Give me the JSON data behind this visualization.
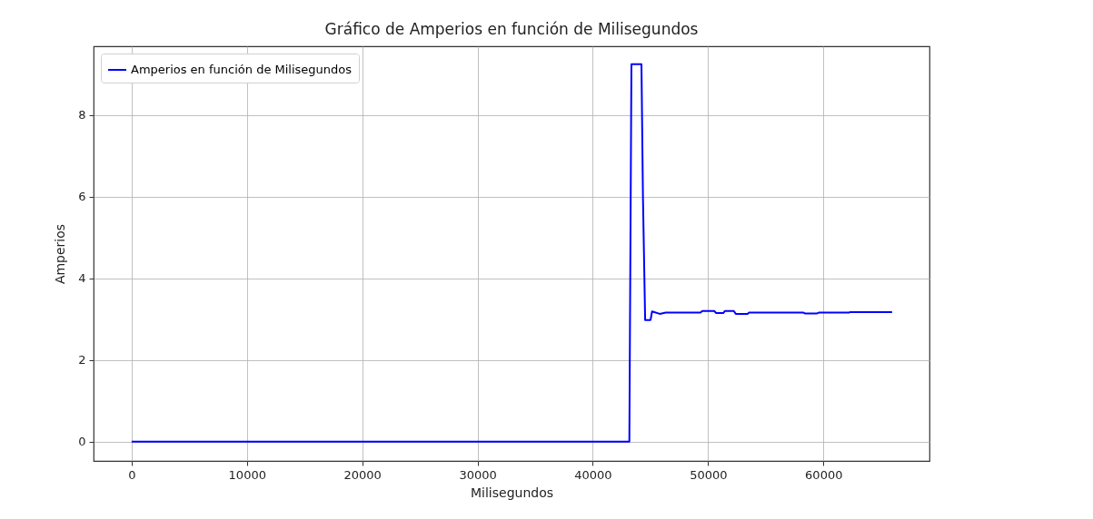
{
  "chart_data": {
    "type": "line",
    "title": "Gráfico de Amperios en función de Milisegundos",
    "xlabel": "Milisegundos",
    "ylabel": "Amperios",
    "x": [
      0,
      43170,
      43350,
      44220,
      44350,
      44540,
      45010,
      45140,
      45800,
      46330,
      49340,
      49500,
      50530,
      50700,
      51310,
      51450,
      52230,
      52400,
      53420,
      53550,
      58270,
      58400,
      59450,
      59600,
      62200,
      62300,
      65960
    ],
    "series": [
      {
        "name": "Amperios en función de Milisegundos",
        "color": "#0000ff",
        "values": [
          0,
          0,
          9.24,
          9.24,
          6.0,
          2.98,
          2.98,
          3.19,
          3.13,
          3.16,
          3.16,
          3.2,
          3.2,
          3.15,
          3.15,
          3.2,
          3.2,
          3.13,
          3.13,
          3.16,
          3.16,
          3.14,
          3.14,
          3.16,
          3.16,
          3.17,
          3.17
        ]
      }
    ],
    "xlim": [
      -3300,
      69200
    ],
    "xticks": [
      0,
      10000,
      20000,
      30000,
      40000,
      50000,
      60000
    ],
    "ylim": [
      -0.47,
      9.68
    ],
    "yticks": [
      0,
      2,
      4,
      6,
      8
    ],
    "grid": true,
    "legend": "top left",
    "marker": "none",
    "line_style": "solid"
  }
}
